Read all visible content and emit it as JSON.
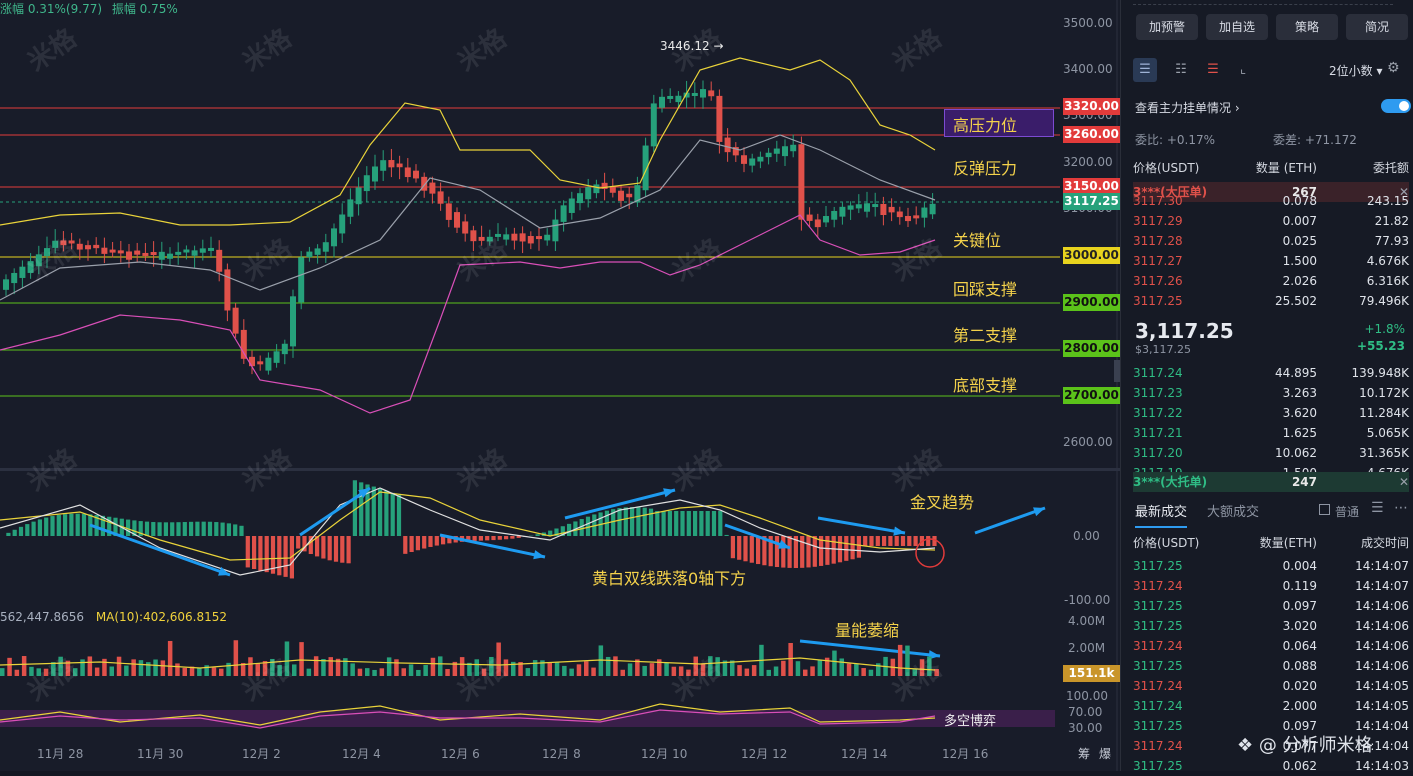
{
  "header": {
    "change": "涨幅 0.31%(9.77)",
    "amplitude": "振幅 0.75%"
  },
  "price_axis": [
    "3500.00",
    "3400.00",
    "3300.00",
    "3200.00",
    "3100.00",
    "2600.00"
  ],
  "price_tags": [
    {
      "label": "3320.00",
      "color": "#e23b3b"
    },
    {
      "label": "3260.00",
      "color": "#e23b3b"
    },
    {
      "label": "3150.00",
      "color": "#e23b3b"
    },
    {
      "label": "3117.25",
      "color": "#26a17b"
    },
    {
      "label": "3000.00",
      "color": "#e8d31e"
    },
    {
      "label": "2900.00",
      "color": "#5bc21a"
    },
    {
      "label": "2800.00",
      "color": "#5bc21a"
    },
    {
      "label": "2700.00",
      "color": "#5bc21a"
    }
  ],
  "annotations": {
    "high_resistance": "高压力位",
    "rebound_resistance": "反弹压力",
    "key_level": "关键位",
    "pullback_support": "回踩支撑",
    "second_support": "第二支撑",
    "bottom_support": "底部支撑",
    "golden_cross": "金叉趋势",
    "macd_note": "黄白双线跌落0轴下方",
    "volume_note": "量能萎缩",
    "longshort": "多空博弈",
    "peak_label": "3446.12 →"
  },
  "macd_axis": [
    "0.00",
    "-100.00"
  ],
  "volume_info": {
    "value": "562,447.8656",
    "ma": "MA(10):402,606.8152"
  },
  "volume_axis": [
    "4.00M",
    "2.00M"
  ],
  "volume_tag": "151.1k",
  "kdj_axis": [
    "100.00",
    "70.00",
    "30.00"
  ],
  "date_axis": [
    "11月 28",
    "11月 30",
    "12月 2",
    "12月 4",
    "12月 6",
    "12月 8",
    "12月 10",
    "12月 12",
    "12月 14",
    "12月 16"
  ],
  "corner_buttons": [
    "筹",
    "爆"
  ],
  "watermark": "米格",
  "footer_credit": "分析师米格",
  "sidebar": {
    "buttons": [
      "加预警",
      "加自选",
      "策略",
      "简况"
    ],
    "decimals": "2位小数",
    "main_order_label": "查看主力挂单情况",
    "bid_ratio": "委比: +0.17%",
    "bid_diff": "委差: +71.172",
    "book_headers": [
      "价格(USDT)",
      "数量 (ETH)",
      "委托额"
    ],
    "ask_big": {
      "name": "3***(大压单)",
      "qty": "267"
    },
    "asks": [
      [
        "3117.30",
        "0.078",
        "243.15"
      ],
      [
        "3117.29",
        "0.007",
        "21.82"
      ],
      [
        "3117.28",
        "0.025",
        "77.93"
      ],
      [
        "3117.27",
        "1.500",
        "4.676K"
      ],
      [
        "3117.26",
        "2.026",
        "6.316K"
      ],
      [
        "3117.25",
        "25.502",
        "79.496K"
      ]
    ],
    "last_price": "3,117.25",
    "last_price_sub": "$3,117.25",
    "change_pct": "+1.8%",
    "change_abs": "+55.23",
    "bids": [
      [
        "3117.24",
        "44.895",
        "139.948K"
      ],
      [
        "3117.23",
        "3.263",
        "10.172K"
      ],
      [
        "3117.22",
        "3.620",
        "11.284K"
      ],
      [
        "3117.21",
        "1.625",
        "5.065K"
      ],
      [
        "3117.20",
        "10.062",
        "31.365K"
      ],
      [
        "3117.19",
        "1.500",
        "4.676K"
      ]
    ],
    "bid_big": {
      "name": "3***(大托单)",
      "qty": "247"
    },
    "trade_tabs": [
      "最新成交",
      "大额成交"
    ],
    "normal_label": "普通",
    "trade_headers": [
      "价格(USDT)",
      "数量(ETH)",
      "成交时间"
    ],
    "trades": [
      [
        "3117.25",
        "0.004",
        "14:14:07",
        "g"
      ],
      [
        "3117.24",
        "0.119",
        "14:14:07",
        "r"
      ],
      [
        "3117.25",
        "0.097",
        "14:14:06",
        "g"
      ],
      [
        "3117.25",
        "3.020",
        "14:14:06",
        "g"
      ],
      [
        "3117.24",
        "0.064",
        "14:14:06",
        "r"
      ],
      [
        "3117.25",
        "0.088",
        "14:14:06",
        "g"
      ],
      [
        "3117.24",
        "0.020",
        "14:14:05",
        "r"
      ],
      [
        "3117.24",
        "2.000",
        "14:14:05",
        "g"
      ],
      [
        "3117.25",
        "0.097",
        "14:14:04",
        "g"
      ],
      [
        "3117.24",
        "0.077",
        "14:14:04",
        "r"
      ],
      [
        "3117.25",
        "0.062",
        "14:14:03",
        "g"
      ]
    ]
  }
}
